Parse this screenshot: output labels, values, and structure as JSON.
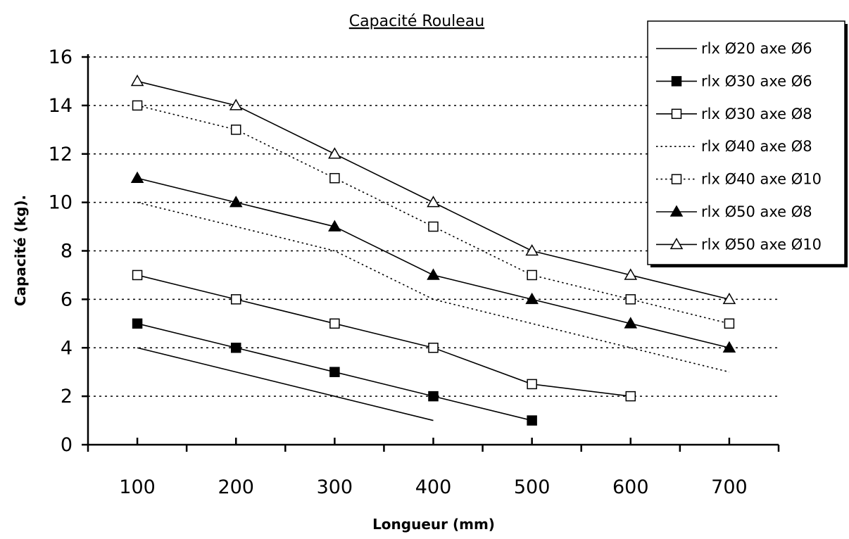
{
  "chart_data": {
    "type": "line",
    "title": "Capacité Rouleau",
    "xlabel": "Longueur (mm)",
    "ylabel": "Capacité (kg).",
    "xlim": [
      50,
      750
    ],
    "ylim": [
      0,
      16
    ],
    "x_ticks": [
      100,
      200,
      300,
      400,
      500,
      600,
      700
    ],
    "y_ticks": [
      0,
      2,
      4,
      6,
      8,
      10,
      12,
      14,
      16
    ],
    "grid": "horizontal-dotted",
    "legend_position": "top-right",
    "series": [
      {
        "name": "rlx Ø20 axe Ø6",
        "line": "solid",
        "marker": "none",
        "points": [
          [
            100,
            4
          ],
          [
            400,
            1
          ]
        ]
      },
      {
        "name": "rlx Ø30 axe Ø6",
        "line": "solid",
        "marker": "filled-square",
        "points": [
          [
            100,
            5
          ],
          [
            200,
            4
          ],
          [
            300,
            3
          ],
          [
            400,
            2
          ],
          [
            500,
            1
          ]
        ]
      },
      {
        "name": "rlx Ø30 axe Ø8",
        "line": "solid",
        "marker": "open-square",
        "points": [
          [
            100,
            7
          ],
          [
            200,
            6
          ],
          [
            300,
            5
          ],
          [
            400,
            4
          ],
          [
            500,
            2.5
          ],
          [
            600,
            2
          ]
        ]
      },
      {
        "name": "rlx Ø40 axe Ø8",
        "line": "dotted",
        "marker": "none",
        "points": [
          [
            100,
            10
          ],
          [
            200,
            9
          ],
          [
            300,
            8
          ],
          [
            400,
            6
          ],
          [
            500,
            5
          ],
          [
            600,
            4
          ],
          [
            700,
            3
          ]
        ]
      },
      {
        "name": "rlx Ø40 axe Ø10",
        "line": "dotted",
        "marker": "open-square",
        "points": [
          [
            100,
            14
          ],
          [
            200,
            13
          ],
          [
            300,
            11
          ],
          [
            400,
            9
          ],
          [
            500,
            7
          ],
          [
            600,
            6
          ],
          [
            700,
            5
          ]
        ]
      },
      {
        "name": "rlx Ø50 axe Ø8",
        "line": "solid",
        "marker": "filled-triangle",
        "points": [
          [
            100,
            11
          ],
          [
            200,
            10
          ],
          [
            300,
            9
          ],
          [
            400,
            7
          ],
          [
            500,
            6
          ],
          [
            600,
            5
          ],
          [
            700,
            4
          ]
        ]
      },
      {
        "name": "rlx Ø50 axe Ø10",
        "line": "solid",
        "marker": "open-triangle",
        "points": [
          [
            100,
            15
          ],
          [
            200,
            14
          ],
          [
            300,
            12
          ],
          [
            400,
            10
          ],
          [
            500,
            8
          ],
          [
            600,
            7
          ],
          [
            700,
            6
          ]
        ]
      }
    ]
  }
}
